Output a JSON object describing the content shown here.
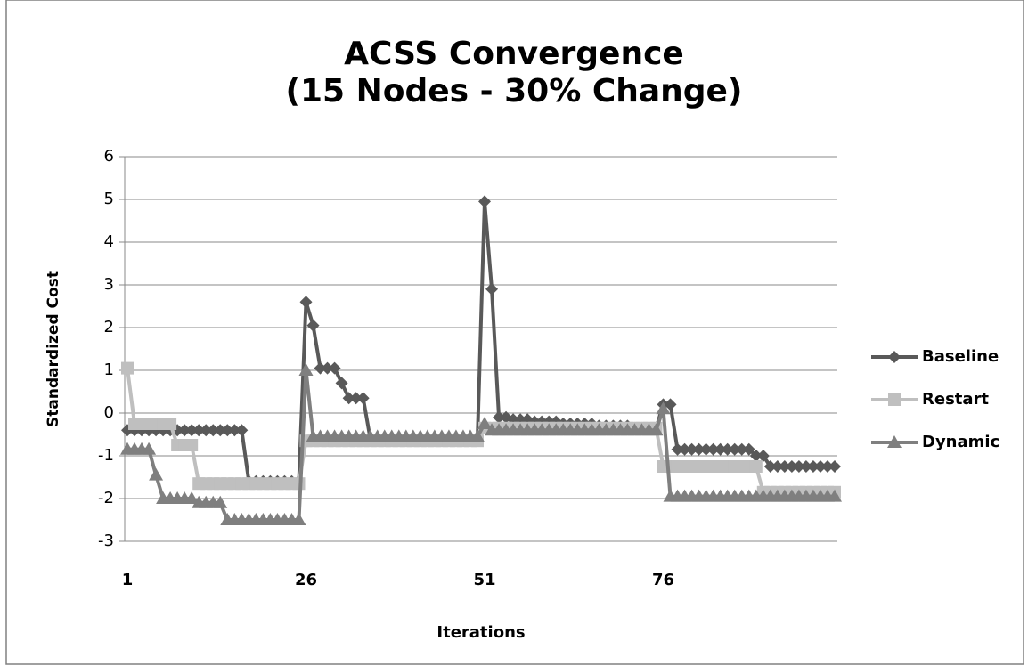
{
  "chart_data": {
    "type": "line",
    "title": "ACSS Convergence",
    "subtitle": "(15 Nodes - 30% Change)",
    "x_label": "Iterations",
    "y_label": "Standardized Cost",
    "categories": [
      1,
      null,
      null,
      null,
      null,
      null,
      null,
      null,
      null,
      null,
      null,
      null,
      null,
      null,
      null,
      null,
      null,
      null,
      null,
      null,
      null,
      null,
      null,
      null,
      null,
      26,
      null,
      null,
      null,
      null,
      null,
      null,
      null,
      null,
      null,
      null,
      null,
      null,
      null,
      null,
      null,
      null,
      null,
      null,
      null,
      null,
      null,
      null,
      null,
      null,
      51,
      null,
      null,
      null,
      null,
      null,
      null,
      null,
      null,
      null,
      null,
      null,
      null,
      null,
      null,
      null,
      null,
      null,
      null,
      null,
      null,
      null,
      null,
      null,
      null,
      76,
      null,
      null,
      null,
      null,
      null,
      null,
      null,
      null,
      null,
      null,
      null,
      null,
      null,
      null,
      null,
      null,
      null,
      null,
      null,
      null,
      null,
      null,
      null,
      null
    ],
    "ylim": [
      -3,
      6
    ],
    "yticks": [
      -3,
      -2,
      -1,
      0,
      1,
      2,
      3,
      4,
      5,
      6
    ],
    "grid": true,
    "legend": "right",
    "series": [
      {
        "name": "Baseline",
        "color": "#595959",
        "marker": "diamond",
        "values": [
          -0.4,
          -0.4,
          -0.4,
          -0.4,
          -0.4,
          -0.4,
          -0.4,
          -0.4,
          -0.4,
          -0.4,
          -0.4,
          -0.4,
          -0.4,
          -0.4,
          -0.4,
          -0.4,
          -0.4,
          -1.6,
          -1.6,
          -1.6,
          -1.6,
          -1.6,
          -1.6,
          -1.6,
          -1.6,
          2.6,
          2.05,
          1.05,
          1.05,
          1.05,
          0.7,
          0.35,
          0.35,
          0.35,
          -0.6,
          -0.6,
          -0.6,
          -0.6,
          -0.6,
          -0.6,
          -0.6,
          -0.6,
          -0.6,
          -0.6,
          -0.6,
          -0.6,
          -0.6,
          -0.6,
          -0.6,
          -0.6,
          4.95,
          2.9,
          -0.1,
          -0.1,
          -0.15,
          -0.15,
          -0.15,
          -0.2,
          -0.2,
          -0.2,
          -0.2,
          -0.25,
          -0.25,
          -0.25,
          -0.25,
          -0.25,
          -0.3,
          -0.3,
          -0.3,
          -0.3,
          -0.3,
          -0.35,
          -0.35,
          -0.35,
          -0.35,
          0.2,
          0.2,
          -0.85,
          -0.85,
          -0.85,
          -0.85,
          -0.85,
          -0.85,
          -0.85,
          -0.85,
          -0.85,
          -0.85,
          -0.85,
          -1.0,
          -1.0,
          -1.25,
          -1.25,
          -1.25,
          -1.25,
          -1.25,
          -1.25,
          -1.25,
          -1.25,
          -1.25,
          -1.25
        ]
      },
      {
        "name": "Restart",
        "color": "#bfbfbf",
        "marker": "square",
        "values": [
          1.05,
          -0.25,
          -0.25,
          -0.25,
          -0.25,
          -0.25,
          -0.25,
          -0.75,
          -0.75,
          -0.75,
          -1.65,
          -1.65,
          -1.65,
          -1.65,
          -1.65,
          -1.65,
          -1.65,
          -1.65,
          -1.65,
          -1.65,
          -1.65,
          -1.65,
          -1.65,
          -1.65,
          -1.65,
          -0.65,
          -0.65,
          -0.65,
          -0.65,
          -0.65,
          -0.65,
          -0.65,
          -0.65,
          -0.65,
          -0.65,
          -0.65,
          -0.65,
          -0.65,
          -0.65,
          -0.65,
          -0.65,
          -0.65,
          -0.65,
          -0.65,
          -0.65,
          -0.65,
          -0.65,
          -0.65,
          -0.65,
          -0.65,
          -0.35,
          -0.35,
          -0.35,
          -0.35,
          -0.35,
          -0.35,
          -0.35,
          -0.35,
          -0.35,
          -0.35,
          -0.35,
          -0.35,
          -0.35,
          -0.35,
          -0.35,
          -0.35,
          -0.35,
          -0.35,
          -0.35,
          -0.35,
          -0.35,
          -0.35,
          -0.35,
          -0.35,
          -0.35,
          -1.25,
          -1.25,
          -1.25,
          -1.25,
          -1.25,
          -1.25,
          -1.25,
          -1.25,
          -1.25,
          -1.25,
          -1.25,
          -1.25,
          -1.25,
          -1.25,
          -1.85,
          -1.85,
          -1.85,
          -1.85,
          -1.85,
          -1.85,
          -1.85,
          -1.85,
          -1.85,
          -1.85,
          -1.85
        ]
      },
      {
        "name": "Dynamic",
        "color": "#7f7f7f",
        "marker": "triangle",
        "values": [
          -0.85,
          -0.85,
          -0.85,
          -0.85,
          -1.45,
          -2.0,
          -2.0,
          -2.0,
          -2.0,
          -2.0,
          -2.1,
          -2.1,
          -2.1,
          -2.1,
          -2.5,
          -2.5,
          -2.5,
          -2.5,
          -2.5,
          -2.5,
          -2.5,
          -2.5,
          -2.5,
          -2.5,
          -2.5,
          1.0,
          -0.55,
          -0.55,
          -0.55,
          -0.55,
          -0.55,
          -0.55,
          -0.55,
          -0.55,
          -0.55,
          -0.55,
          -0.55,
          -0.55,
          -0.55,
          -0.55,
          -0.55,
          -0.55,
          -0.55,
          -0.55,
          -0.55,
          -0.55,
          -0.55,
          -0.55,
          -0.55,
          -0.55,
          -0.25,
          -0.4,
          -0.4,
          -0.4,
          -0.4,
          -0.4,
          -0.4,
          -0.4,
          -0.4,
          -0.4,
          -0.4,
          -0.4,
          -0.4,
          -0.4,
          -0.4,
          -0.4,
          -0.4,
          -0.4,
          -0.4,
          -0.4,
          -0.4,
          -0.4,
          -0.4,
          -0.4,
          -0.4,
          0.1,
          -1.95,
          -1.95,
          -1.95,
          -1.95,
          -1.95,
          -1.95,
          -1.95,
          -1.95,
          -1.95,
          -1.95,
          -1.95,
          -1.95,
          -1.95,
          -1.95,
          -1.95,
          -1.95,
          -1.95,
          -1.95,
          -1.95,
          -1.95,
          -1.95,
          -1.95,
          -1.95,
          -1.95
        ]
      }
    ]
  }
}
